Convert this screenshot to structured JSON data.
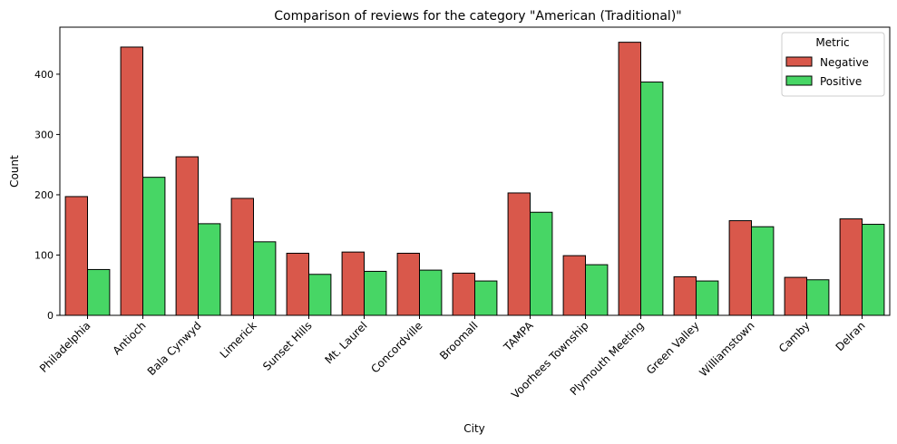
{
  "chart_data": {
    "type": "bar",
    "title": "Comparison of reviews for the category \"American (Traditional)\"",
    "xlabel": "City",
    "ylabel": "Count",
    "ylim": [
      0,
      478
    ],
    "yticks": [
      0,
      100,
      200,
      300,
      400
    ],
    "categories": [
      "Philadelphia",
      "Antioch",
      "Bala Cynwyd",
      "Limerick",
      "Sunset Hills",
      "Mt. Laurel",
      "Concordville",
      "Broomall",
      "TAMPA",
      "Voorhees Township",
      "Plymouth Meeting",
      "Green Valley",
      "Williamstown",
      "Camby",
      "Delran"
    ],
    "series": [
      {
        "name": "Negative",
        "color": "#d9584b",
        "values": [
          197,
          445,
          263,
          194,
          103,
          105,
          103,
          70,
          203,
          99,
          453,
          64,
          157,
          63,
          160
        ]
      },
      {
        "name": "Positive",
        "color": "#47d665",
        "values": [
          76,
          229,
          152,
          122,
          68,
          73,
          75,
          57,
          171,
          84,
          387,
          57,
          147,
          59,
          151
        ]
      }
    ],
    "legend": {
      "title": "Metric",
      "position": "top-right"
    },
    "grid": false
  }
}
